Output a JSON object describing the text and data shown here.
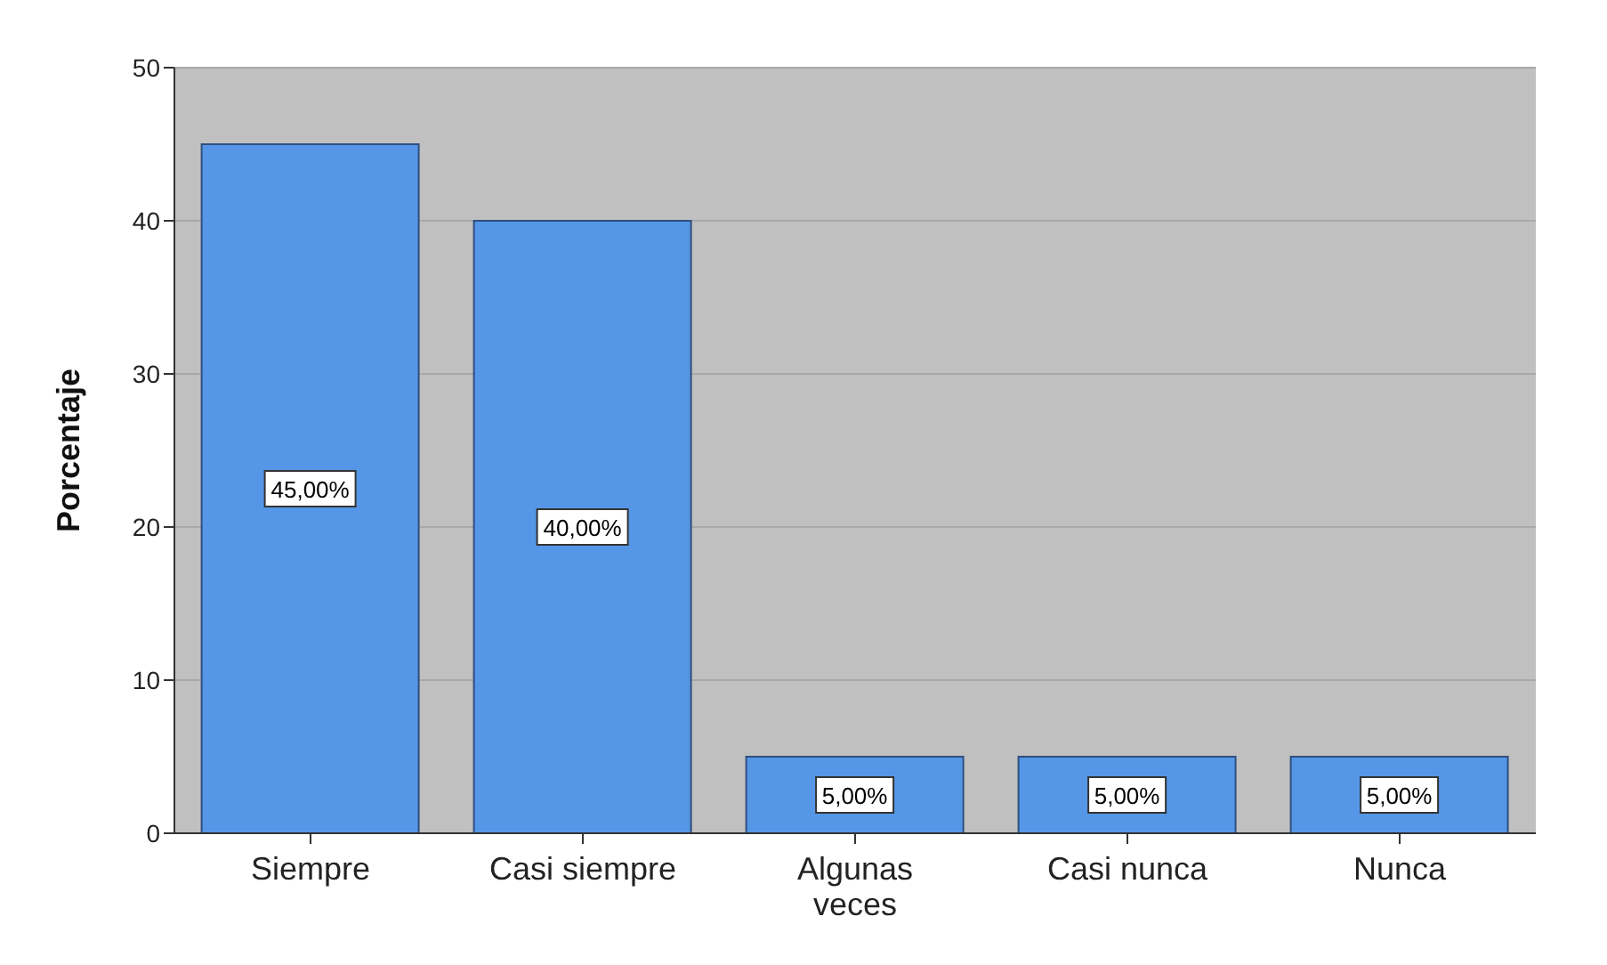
{
  "chart_data": {
    "type": "bar",
    "ylabel": "Porcentaje",
    "categories": [
      "Siempre",
      "Casi siempre",
      "Algunas veces",
      "Casi nunca",
      "Nunca"
    ],
    "values": [
      45,
      40,
      5,
      5,
      5
    ],
    "value_labels": [
      "45,00%",
      "40,00%",
      "5,00%",
      "5,00%",
      "5,00%"
    ],
    "color": "#5596e6",
    "ylim": [
      0,
      50
    ],
    "yticks": [
      0,
      10,
      20,
      30,
      40,
      50
    ],
    "grid": "y"
  }
}
